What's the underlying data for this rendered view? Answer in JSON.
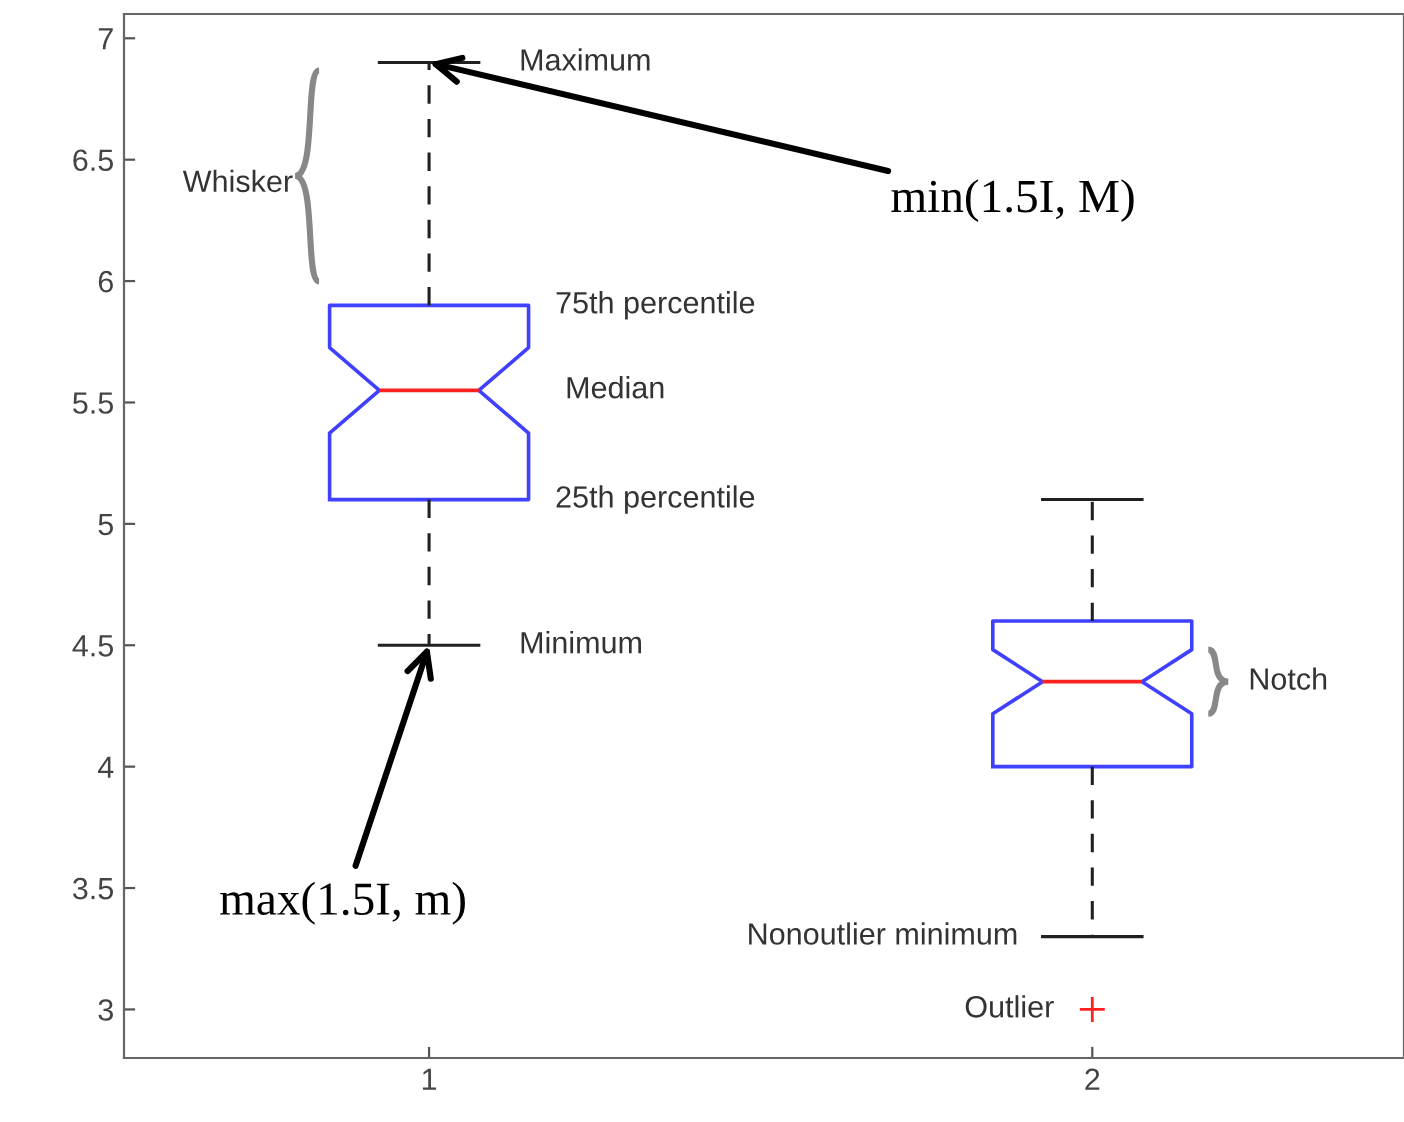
{
  "chart_data": {
    "type": "box",
    "categories": [
      "1",
      "2"
    ],
    "color": "#4040ff",
    "boxes": [
      {
        "low": 4.5,
        "q1": 5.1,
        "median": 5.55,
        "q3": 5.9,
        "high": 6.9
      },
      {
        "low": 3.3,
        "q1": 4.0,
        "median": 4.35,
        "q3": 4.6,
        "high": 5.1,
        "outliers": [
          3.0
        ]
      }
    ],
    "ylim": [
      2.8,
      7.1
    ],
    "yticks": [
      3,
      3.5,
      4,
      4.5,
      5,
      5.5,
      6,
      6.5,
      7
    ],
    "grid": false,
    "annotations": [
      "Maximum",
      "Whisker",
      {
        "text": "min(1.5I, M)",
        "x": "1",
        "y": 6.9
      },
      "75th percentile",
      "Median",
      "25th percentile",
      "Minimum",
      {
        "text": "max(1.5I, m)",
        "x": "1",
        "y": 4.5
      },
      "Notch",
      "Nonoutlier minimum",
      "Outlier"
    ]
  }
}
